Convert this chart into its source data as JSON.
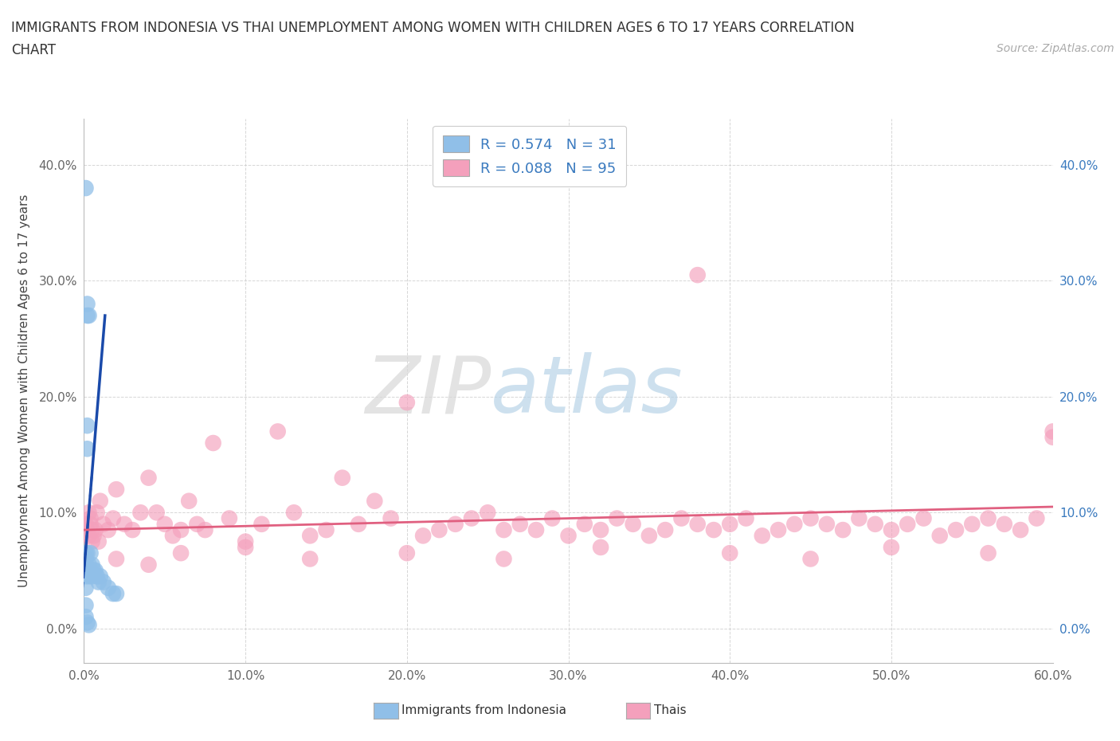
{
  "title_line1": "IMMIGRANTS FROM INDONESIA VS THAI UNEMPLOYMENT AMONG WOMEN WITH CHILDREN AGES 6 TO 17 YEARS CORRELATION",
  "title_line2": "CHART",
  "source": "Source: ZipAtlas.com",
  "ylabel": "Unemployment Among Women with Children Ages 6 to 17 years",
  "xlim": [
    0.0,
    0.6
  ],
  "ylim": [
    -0.03,
    0.44
  ],
  "x_ticks": [
    0.0,
    0.1,
    0.2,
    0.3,
    0.4,
    0.5,
    0.6
  ],
  "y_ticks": [
    0.0,
    0.1,
    0.2,
    0.3,
    0.4
  ],
  "indonesia_color": "#90bfe8",
  "thai_color": "#f4a0bc",
  "indonesia_line_color": "#1a4aaa",
  "thai_line_color": "#e06080",
  "legend_entry_1": "R = 0.574   N = 31",
  "legend_entry_2": "R = 0.088   N = 95",
  "bottom_legend_1": "Immigrants from Indonesia",
  "bottom_legend_2": "Thais",
  "right_tick_color": "#3a7abf",
  "watermark_zip": "ZIP",
  "watermark_atlas": "atlas",
  "background_color": "#ffffff"
}
